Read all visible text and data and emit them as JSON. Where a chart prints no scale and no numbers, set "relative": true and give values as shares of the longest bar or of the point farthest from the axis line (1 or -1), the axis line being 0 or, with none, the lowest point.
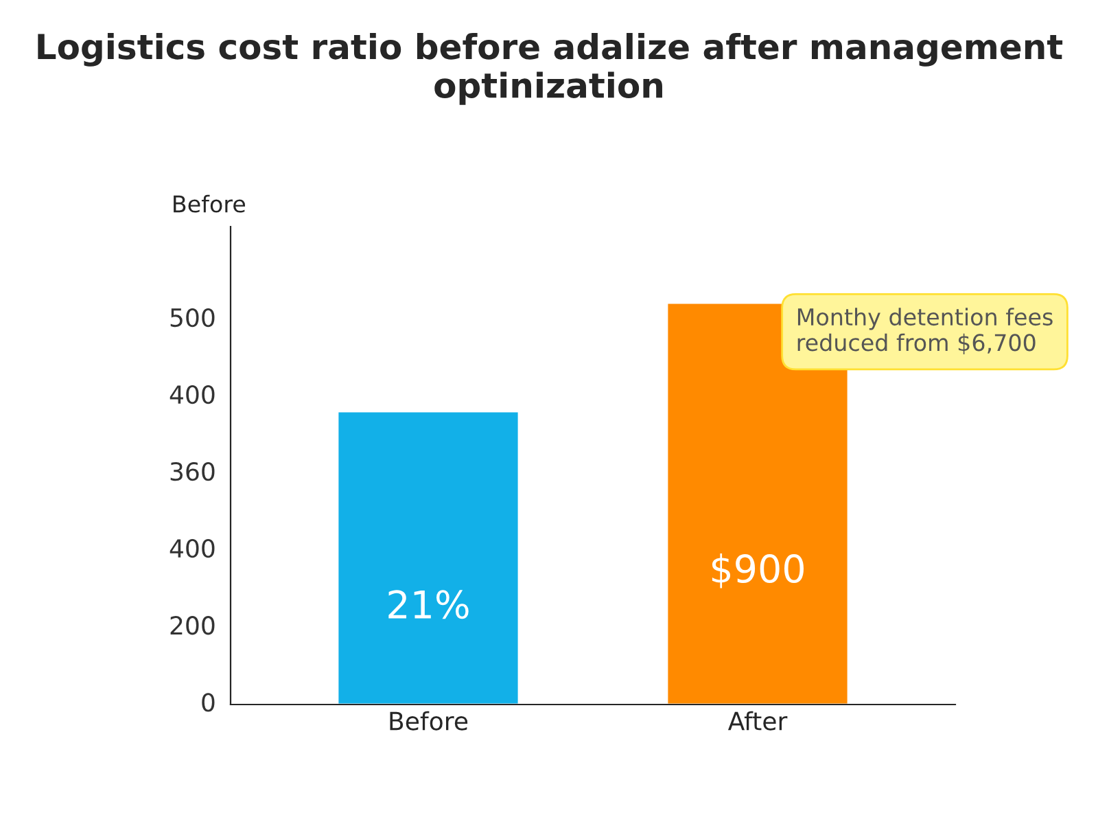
{
  "chart_data": {
    "type": "bar",
    "title": "Logistics cost ratio before adalize after management optinization",
    "ylabel": "Before",
    "categories": [
      "Before",
      "After"
    ],
    "values": [
      0.73,
      1
    ],
    "relative": true,
    "colors": [
      "#12b0e8",
      "#ff8a00"
    ],
    "annotations": [
      "21%",
      "$900",
      "Monthy detention fees\nreduced from $6,700",
      "0",
      "200",
      "400",
      "360",
      "400",
      "500"
    ],
    "grid": false,
    "legend": false
  }
}
